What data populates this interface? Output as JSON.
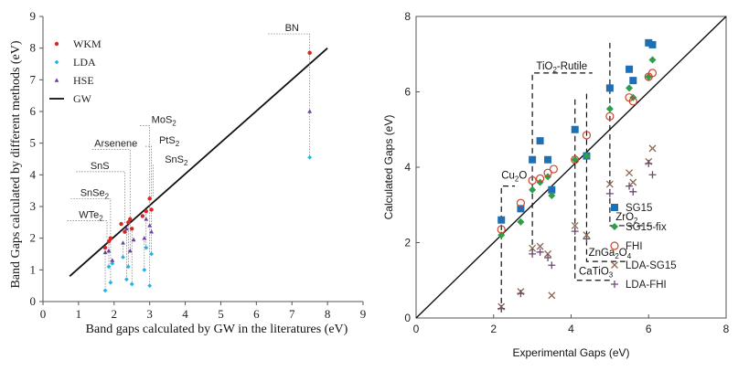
{
  "chart_data": [
    {
      "type": "scatter",
      "xlabel": "Band gaps calculated by GW in the literatures (eV)",
      "ylabel": "Band Gaps calculated by different methods (eV)",
      "xlim": [
        0,
        9
      ],
      "ylim": [
        0,
        9
      ],
      "xticks": [
        "0",
        "1",
        "2",
        "3",
        "4",
        "5",
        "6",
        "7",
        "8",
        "9"
      ],
      "yticks": [
        "0",
        "1",
        "2",
        "3",
        "4",
        "5",
        "6",
        "7",
        "8",
        "9"
      ],
      "legend": "top-left",
      "legend_labels": [
        "WKM",
        "LDA",
        "HSE",
        "GW"
      ],
      "colors": {
        "WKM": "#d62728",
        "LDA": "#1fb4e6",
        "HSE": "#6a3fa0",
        "GW": "#000000"
      },
      "reference_line": [
        [
          0.75,
          0.8
        ],
        [
          8.0,
          8.0
        ]
      ],
      "material_labels": [
        {
          "text": "BN",
          "x": 7.5,
          "yl": 8.45,
          "xl": 7.0
        },
        {
          "text": "MoS2",
          "x": 3.0,
          "yl": 5.55,
          "xl": 3.4
        },
        {
          "text": "PtS2",
          "x": 3.05,
          "yl": 4.9,
          "xl": 3.55
        },
        {
          "text": "SnS2",
          "x": 3.1,
          "yl": 4.3,
          "xl": 3.75
        },
        {
          "text": "Arsenene",
          "x": 2.45,
          "yl": 4.8,
          "xl": 2.05
        },
        {
          "text": "SnS",
          "x": 2.3,
          "yl": 4.1,
          "xl": 1.6
        },
        {
          "text": "SnSe2",
          "x": 1.9,
          "yl": 3.25,
          "xl": 1.45
        },
        {
          "text": "WTe2",
          "x": 1.8,
          "yl": 2.55,
          "xl": 1.35
        }
      ],
      "series": [
        {
          "name": "WKM",
          "x": [
            1.75,
            1.85,
            1.9,
            2.2,
            2.3,
            2.4,
            2.45,
            2.5,
            2.8,
            2.9,
            3.0,
            3.05,
            7.5
          ],
          "y": [
            1.7,
            1.9,
            2.0,
            2.45,
            2.2,
            2.5,
            2.6,
            2.3,
            2.7,
            2.85,
            3.25,
            2.9,
            7.85
          ]
        },
        {
          "name": "LDA",
          "x": [
            1.75,
            1.85,
            1.9,
            1.95,
            2.25,
            2.35,
            2.4,
            2.5,
            2.85,
            2.9,
            3.0,
            3.05,
            7.5
          ],
          "y": [
            0.35,
            1.1,
            0.6,
            1.2,
            1.4,
            0.7,
            1.1,
            0.55,
            1.0,
            1.7,
            0.5,
            1.5,
            4.55
          ]
        },
        {
          "name": "HSE",
          "x": [
            1.75,
            1.85,
            1.95,
            2.25,
            2.35,
            2.45,
            2.55,
            2.85,
            2.9,
            3.0,
            3.05,
            7.5
          ],
          "y": [
            1.55,
            1.6,
            1.3,
            1.85,
            2.3,
            1.6,
            1.95,
            2.0,
            2.6,
            2.4,
            2.2,
            6.0
          ]
        }
      ]
    },
    {
      "type": "scatter",
      "xlabel": "Experimental Gaps (eV)",
      "ylabel": "Calculated Gaps (eV)",
      "xlim": [
        0,
        8
      ],
      "ylim": [
        0,
        8
      ],
      "xticks": [
        "0",
        "2",
        "4",
        "6",
        "8"
      ],
      "yticks": [
        "0",
        "2",
        "4",
        "6",
        "8"
      ],
      "legend": "bottom-right",
      "legend_labels": [
        "SG15",
        "SG15-fix",
        "FHI",
        "LDA-SG15",
        "LDA-FHI"
      ],
      "colors": {
        "SG15": "#1f6fb4",
        "SG15-fix": "#2e9e4a",
        "FHI": "#d0432c",
        "LDA-SG15": "#8a6a55",
        "LDA-FHI": "#6a4a70"
      },
      "reference_line": [
        [
          0,
          0
        ],
        [
          8,
          8
        ]
      ],
      "material_labels": [
        {
          "text": "TiO2-Rutile",
          "x": 3.0,
          "xl": 3.1,
          "yl": 6.6
        },
        {
          "text": "Cu2O",
          "x": 2.2,
          "xl": 2.2,
          "yl": 3.7
        },
        {
          "text": "ZrO2",
          "x": 5.0,
          "xl": 5.15,
          "yl": 2.6
        },
        {
          "text": "ZnGa2O4",
          "x": 4.4,
          "xl": 4.45,
          "yl": 1.65
        },
        {
          "text": "CaTiO3",
          "x": 4.1,
          "xl": 4.2,
          "yl": 1.15
        }
      ],
      "series": [
        {
          "name": "SG15",
          "x": [
            2.2,
            2.7,
            3.0,
            3.2,
            3.4,
            3.5,
            4.1,
            4.4,
            5.0,
            5.5,
            5.6,
            6.0,
            6.1
          ],
          "y": [
            2.6,
            2.9,
            4.2,
            4.7,
            4.2,
            3.4,
            5.0,
            4.3,
            6.1,
            6.6,
            6.3,
            7.3,
            7.25
          ]
        },
        {
          "name": "SG15-fix",
          "x": [
            2.2,
            2.7,
            3.0,
            3.2,
            3.4,
            3.5,
            4.1,
            4.4,
            5.0,
            5.5,
            5.6,
            6.0,
            6.1
          ],
          "y": [
            2.2,
            2.55,
            3.4,
            3.6,
            3.75,
            3.25,
            4.2,
            4.3,
            5.55,
            6.1,
            5.85,
            6.4,
            6.85
          ]
        },
        {
          "name": "FHI",
          "x": [
            2.2,
            2.7,
            3.0,
            3.2,
            3.4,
            3.55,
            4.1,
            4.4,
            5.0,
            5.5,
            5.6,
            6.0,
            6.1
          ],
          "y": [
            2.35,
            3.05,
            3.65,
            3.7,
            3.85,
            3.95,
            4.2,
            4.85,
            5.35,
            5.85,
            5.75,
            6.4,
            6.5
          ]
        },
        {
          "name": "LDA-SG15",
          "x": [
            2.2,
            2.7,
            3.0,
            3.2,
            3.4,
            3.5,
            4.1,
            4.4,
            5.0,
            5.5,
            5.6,
            6.0,
            6.1
          ],
          "y": [
            0.3,
            0.7,
            1.85,
            1.9,
            1.7,
            0.6,
            2.45,
            2.2,
            3.55,
            3.85,
            3.6,
            4.15,
            4.5
          ]
        },
        {
          "name": "LDA-FHI",
          "x": [
            2.2,
            2.7,
            3.0,
            3.2,
            3.4,
            3.5,
            4.1,
            4.4,
            5.0,
            5.5,
            5.6,
            6.0,
            6.1
          ],
          "y": [
            0.25,
            0.65,
            1.7,
            1.75,
            1.6,
            1.4,
            2.3,
            2.1,
            3.3,
            3.5,
            3.35,
            4.1,
            3.8
          ]
        }
      ]
    }
  ]
}
